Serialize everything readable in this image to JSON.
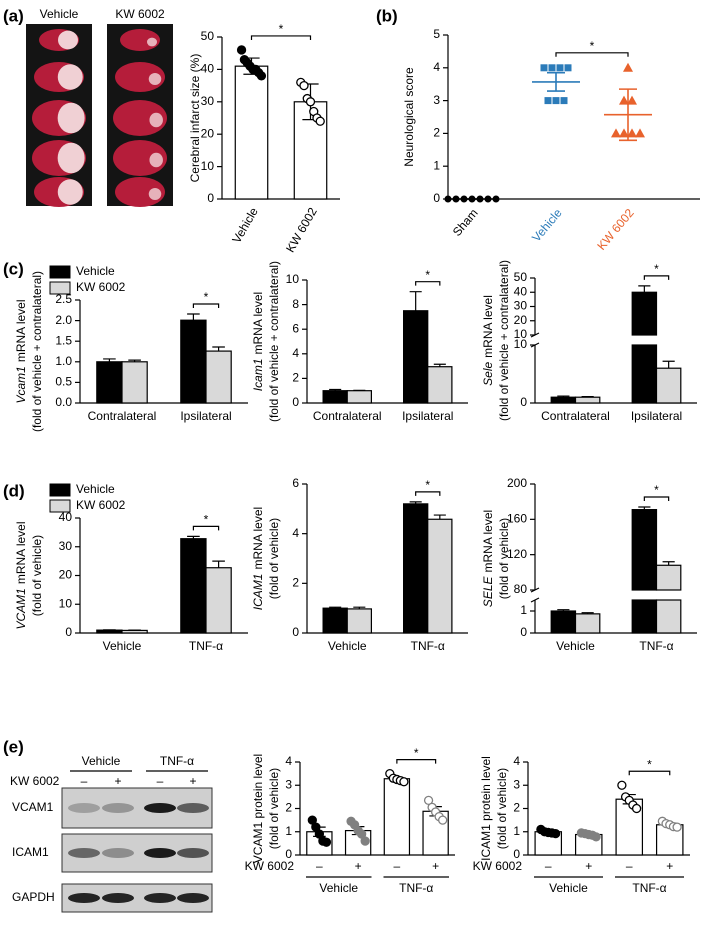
{
  "images": {
    "brain": {
      "panel": "(a)",
      "columns": [
        "Vehicle",
        "KW 6002"
      ]
    },
    "blot": {
      "panel": "(e)",
      "treatment": "KW 6002",
      "signs": [
        "–",
        "+",
        "–",
        "+"
      ],
      "groups": [
        "Vehicle",
        "TNF-α"
      ],
      "rows": [
        "VCAM1",
        "ICAM1",
        "GAPDH"
      ]
    }
  },
  "chart_data": [
    {
      "type": "bar",
      "ylabel": [
        "Cerebral infarct size (%)"
      ],
      "categories": [
        "Vehicle",
        "KW 6002"
      ],
      "values": [
        41,
        30
      ],
      "errors": [
        2.5,
        5.5
      ],
      "color": "#ffffff",
      "edgecolor": "#000000",
      "errorbars": "both",
      "points": [
        [
          46,
          43,
          42,
          41,
          40,
          40,
          39,
          38
        ],
        [
          36,
          35,
          31,
          30,
          27,
          25,
          24
        ]
      ],
      "point_fill": [
        "#000000",
        "#ffffff"
      ],
      "point_stroke": [
        "#000000",
        "#000000"
      ],
      "ylim": [
        0,
        50
      ],
      "yticks": [
        0,
        10,
        20,
        30,
        40,
        50
      ],
      "significance": "*"
    },
    {
      "type": "scatter",
      "panel": "(b)",
      "ylabel": [
        "Neurological score"
      ],
      "categories": [
        "Sham",
        "Vehicle",
        "KW 6002"
      ],
      "series": [
        {
          "color": "#000000",
          "marker": "circle",
          "values": [
            0,
            0,
            0,
            0,
            0,
            0,
            0
          ],
          "mean": 0,
          "error": 0
        },
        {
          "color": "#2b7bb9",
          "marker": "square",
          "values": [
            4,
            4,
            4,
            4,
            3,
            3,
            3
          ],
          "mean": 3.57,
          "error": 0.28
        },
        {
          "color": "#e8622c",
          "marker": "triangle",
          "values": [
            4,
            3,
            3,
            2,
            2,
            2,
            2
          ],
          "mean": 2.57,
          "error": 0.78
        }
      ],
      "ylim": [
        0,
        5
      ],
      "yticks": [
        0,
        1,
        2,
        3,
        4,
        5
      ],
      "significance": "*"
    },
    {
      "type": "bar",
      "panel": "(c)",
      "ylabel": [
        [
          "Vcam1",
          "mRNA level"
        ],
        "(fold of vehicle + contralateral)"
      ],
      "categories": [
        "Contralateral",
        "Ipsilateral"
      ],
      "series": [
        {
          "name": "Vehicle",
          "color": "#000000",
          "values": [
            1.0,
            2.01
          ],
          "errors": [
            0.07,
            0.15
          ]
        },
        {
          "name": "KW 6002",
          "color": "#d9d9d9",
          "values": [
            1.0,
            1.26
          ],
          "errors": [
            0.04,
            0.1
          ]
        }
      ],
      "edgecolor": "#000000",
      "errorbars": "upper",
      "ylim": [
        0,
        2.5
      ],
      "yticks": [
        {
          "value": 0,
          "label": "0.0"
        },
        0.5,
        {
          "value": 1,
          "label": "1.0"
        },
        1.5,
        {
          "value": 2,
          "label": "2.0"
        },
        2.5
      ],
      "legend": "upper left",
      "significance": "*"
    },
    {
      "type": "bar",
      "ylabel": [
        [
          "Icam1",
          "mRNA level"
        ],
        "(fold of vehicle + contralateral)"
      ],
      "categories": [
        "Contralateral",
        "Ipsilateral"
      ],
      "series": [
        {
          "color": "#000000",
          "values": [
            1.0,
            7.5
          ],
          "errors": [
            0.1,
            1.55
          ]
        },
        {
          "color": "#d9d9d9",
          "values": [
            1.0,
            2.95
          ],
          "errors": [
            0.03,
            0.2
          ]
        }
      ],
      "edgecolor": "#000000",
      "errorbars": "upper",
      "ylim": [
        0,
        10
      ],
      "yticks": [
        0,
        2,
        4,
        6,
        8,
        10
      ],
      "significance": "*"
    },
    {
      "type": "bar",
      "ylabel": [
        [
          "Sele",
          "mRNA level"
        ],
        "(fold of vehicle + contralateral)"
      ],
      "categories": [
        "Contralateral",
        "Ipsilateral"
      ],
      "series": [
        {
          "color": "#000000",
          "values": [
            1.0,
            40
          ],
          "errors": [
            0.2,
            4.5
          ]
        },
        {
          "color": "#d9d9d9",
          "values": [
            1.0,
            6.0
          ],
          "errors": [
            0.1,
            1.2
          ]
        }
      ],
      "edgecolor": "#000000",
      "errorbars": "upper",
      "segments": [
        {
          "ylim": [
            0,
            10
          ],
          "yticks": [
            0,
            10
          ]
        },
        {
          "ylim": [
            10,
            50
          ],
          "yticks": [
            10,
            20,
            30,
            40,
            50
          ]
        }
      ],
      "significance": "*"
    },
    {
      "type": "bar",
      "panel": "(d)",
      "ylabel": [
        [
          "VCAM1",
          "mRNA level"
        ],
        "(fold of vehicle)"
      ],
      "categories": [
        "Vehicle",
        "TNF-α"
      ],
      "series": [
        {
          "name": "Vehicle",
          "color": "#000000",
          "values": [
            1.0,
            32.8
          ],
          "errors": [
            0.1,
            0.8
          ]
        },
        {
          "name": "KW 6002",
          "color": "#d9d9d9",
          "values": [
            0.9,
            22.7
          ],
          "errors": [
            0.1,
            2.3
          ]
        }
      ],
      "edgecolor": "#000000",
      "errorbars": "upper",
      "ylim": [
        0,
        40
      ],
      "yticks": [
        0,
        10,
        20,
        30,
        40
      ],
      "legend": "upper left",
      "significance": "*"
    },
    {
      "type": "bar",
      "ylabel": [
        [
          "ICAM1",
          "mRNA level"
        ],
        "(fold of vehicle)"
      ],
      "categories": [
        "Vehicle",
        "TNF-α"
      ],
      "series": [
        {
          "color": "#000000",
          "values": [
            1.0,
            5.2
          ],
          "errors": [
            0.04,
            0.08
          ]
        },
        {
          "color": "#d9d9d9",
          "values": [
            0.97,
            4.58
          ],
          "errors": [
            0.07,
            0.17
          ]
        }
      ],
      "edgecolor": "#000000",
      "errorbars": "upper",
      "ylim": [
        0,
        6
      ],
      "yticks": [
        0,
        2,
        4,
        6
      ],
      "significance": "*"
    },
    {
      "type": "bar",
      "ylabel": [
        [
          "SELE",
          "mRNA level"
        ],
        "(fold of vehicle)"
      ],
      "categories": [
        "Vehicle",
        "TNF-α"
      ],
      "series": [
        {
          "color": "#000000",
          "values": [
            1.0,
            171
          ],
          "errors": [
            0.06,
            3
          ]
        },
        {
          "color": "#d9d9d9",
          "values": [
            0.87,
            108
          ],
          "errors": [
            0.05,
            4
          ]
        }
      ],
      "edgecolor": "#000000",
      "errorbars": "upper",
      "segments": [
        {
          "ylim": [
            0,
            1.5
          ],
          "yticks": [
            0,
            1
          ]
        },
        {
          "ylim": [
            80,
            200
          ],
          "yticks": [
            80,
            120,
            160,
            200
          ]
        }
      ],
      "significance": "*"
    },
    {
      "type": "bar",
      "ylabel": [
        "VCAM1 protein level",
        "(fold of vehicle)"
      ],
      "x_label": "KW 6002",
      "categories": [
        "–",
        "+",
        "–",
        "+"
      ],
      "groups": [
        "Vehicle",
        "TNF-α"
      ],
      "values": [
        1.0,
        1.05,
        3.28,
        1.88
      ],
      "errors": [
        0.2,
        0.17,
        0.06,
        0.2
      ],
      "color": "#ffffff",
      "edgecolor": "#000000",
      "errorbars": "both",
      "points": [
        [
          1.5,
          1.2,
          0.9,
          0.6,
          0.55
        ],
        [
          1.45,
          1.3,
          1.05,
          0.9,
          0.6
        ],
        [
          3.5,
          3.3,
          3.25,
          3.2,
          3.15
        ],
        [
          2.35,
          2.05,
          1.85,
          1.65,
          1.5
        ]
      ],
      "point_fill": [
        "#000000",
        "#808080",
        "#ffffff",
        "#ffffff"
      ],
      "point_stroke": [
        "#000000",
        "#808080",
        "#000000",
        "#808080"
      ],
      "ylim": [
        0,
        4
      ],
      "yticks": [
        0,
        1,
        2,
        3,
        4
      ],
      "significance": "*"
    },
    {
      "type": "bar",
      "ylabel": [
        "ICAM1 protein level",
        "(fold of vehicle)"
      ],
      "x_label": "KW 6002",
      "categories": [
        "–",
        "+",
        "–",
        "+"
      ],
      "groups": [
        "Vehicle",
        "TNF-α"
      ],
      "values": [
        1.0,
        0.88,
        2.4,
        1.3
      ],
      "errors": [
        0.06,
        0.06,
        0.2,
        0.07
      ],
      "color": "#ffffff",
      "edgecolor": "#000000",
      "errorbars": "both",
      "points": [
        [
          1.1,
          1.0,
          0.97,
          0.95,
          0.92
        ],
        [
          0.95,
          0.92,
          0.88,
          0.85,
          0.78
        ],
        [
          3.0,
          2.5,
          2.35,
          2.15,
          2.0
        ],
        [
          1.45,
          1.35,
          1.3,
          1.22,
          1.2
        ]
      ],
      "point_fill": [
        "#000000",
        "#808080",
        "#ffffff",
        "#ffffff"
      ],
      "point_stroke": [
        "#000000",
        "#808080",
        "#000000",
        "#808080"
      ],
      "ylim": [
        0,
        4
      ],
      "yticks": [
        0,
        1,
        2,
        3,
        4
      ],
      "significance": "*"
    }
  ]
}
